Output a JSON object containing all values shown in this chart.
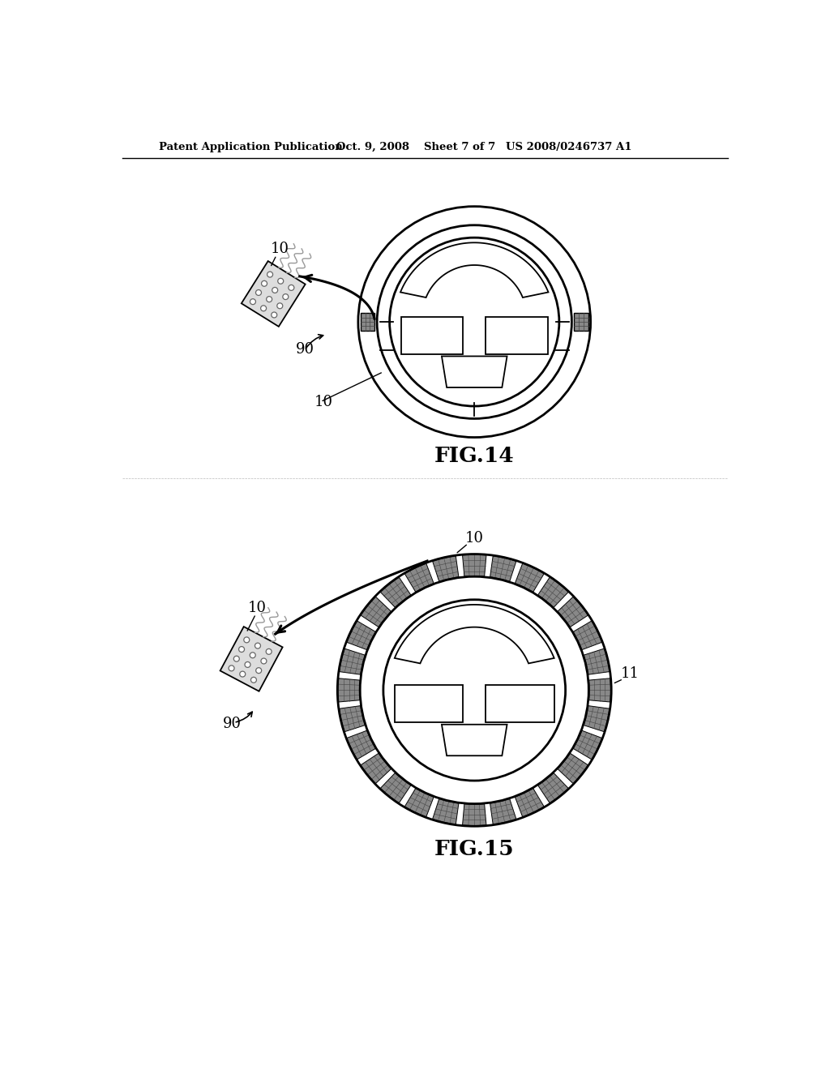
{
  "background_color": "#ffffff",
  "header_text": "Patent Application Publication",
  "header_date": "Oct. 9, 2008",
  "header_sheet": "Sheet 7 of 7",
  "header_patent": "US 2008/0246737 A1",
  "fig14_label": "FIG.14",
  "fig15_label": "FIG.15",
  "line_color": "#000000",
  "pad_color": "#777777",
  "pad_color_light": "#aaaaaa",
  "rim_fill": "#ffffff",
  "hub_fill": "#ffffff"
}
